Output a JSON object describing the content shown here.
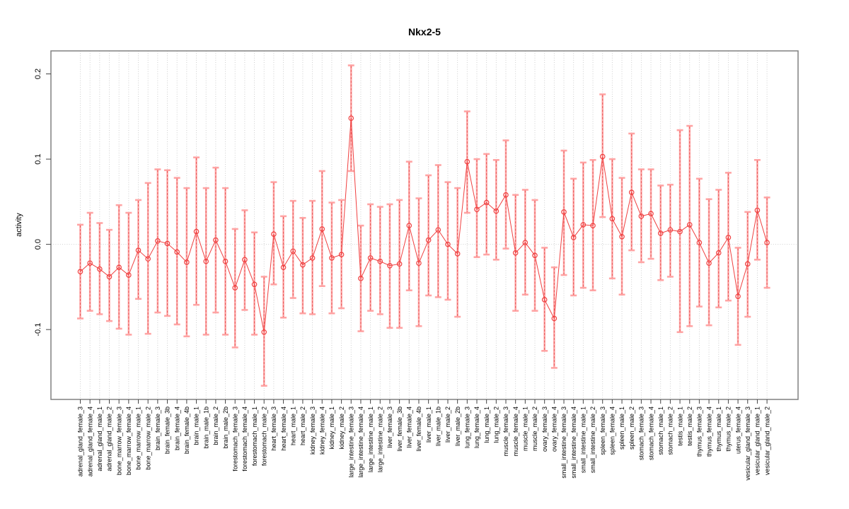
{
  "chart_data": {
    "type": "line",
    "title": "Nkx2-5",
    "xlabel": "",
    "ylabel": "activity",
    "ylim": [
      -0.182,
      0.227
    ],
    "yticks": [
      -0.1,
      0.0,
      0.1,
      0.2
    ],
    "grid": "dotted vertical gridline per category; dotted horizontal line at y=0",
    "legend": "none",
    "marker": "open-circle",
    "error_bars": true,
    "colors": {
      "point_line": "#f04040",
      "errorbar_band": "#ffa0a0",
      "errorbar_dash": "#e45252",
      "gridline": "#c9c9c9",
      "zero_line": "#cfcfcf",
      "box_border": "#808080",
      "text": "#000000",
      "background": "#ffffff"
    },
    "categories": [
      "adrenal_gland_female_3",
      "adrenal_gland_female_4",
      "adrenal_gland_male_1",
      "adrenal_gland_male_2",
      "bone_marrow_female_3",
      "bone_marrow_female_4",
      "bone_marrow_male_1",
      "bone_marrow_male_2",
      "brain_female_3",
      "brain_female_3b",
      "brain_female_4",
      "brain_female_4b",
      "brain_male_1",
      "brain_male_1b",
      "brain_male_2",
      "brain_male_2b",
      "forestomach_female_3",
      "forestomach_female_4",
      "forestomach_male_1",
      "forestomach_male_2",
      "heart_female_3",
      "heart_female_4",
      "heart_male_1",
      "heart_male_2",
      "kidney_female_3",
      "kidney_female_4",
      "kidney_male_1",
      "kidney_male_2",
      "large_intestine_female_3",
      "large_intestine_female_4",
      "large_intestine_male_1",
      "large_intestine_male_2",
      "liver_female_3",
      "liver_female_3b",
      "liver_female_4",
      "liver_female_4b",
      "liver_male_1",
      "liver_male_1b",
      "liver_male_2",
      "liver_male_2b",
      "lung_female_3",
      "lung_female_4",
      "lung_male_1",
      "lung_male_2",
      "muscle_female_3",
      "muscle_female_4",
      "muscle_male_1",
      "muscle_male_2",
      "ovary_female_3",
      "ovary_female_4",
      "small_intestine_female_3",
      "small_intestine_female_4",
      "small_intestine_male_1",
      "small_intestine_male_2",
      "spleen_female_3",
      "spleen_female_4",
      "spleen_male_1",
      "spleen_male_2",
      "stomach_female_3",
      "stomach_female_4",
      "stomach_male_1",
      "stomach_male_2",
      "testis_male_1",
      "testis_male_2",
      "thymus_female_3",
      "thymus_female_4",
      "thymus_male_1",
      "thymus_male_2",
      "uterus_female_4",
      "vesicular_gland_female_3",
      "vesicular_gland_male_1",
      "vesicular_gland_male_2"
    ],
    "series": [
      {
        "name": "activity",
        "values": [
          -0.032,
          -0.022,
          -0.029,
          -0.038,
          -0.027,
          -0.036,
          -0.007,
          -0.017,
          0.004,
          0.001,
          -0.009,
          -0.021,
          0.015,
          -0.02,
          0.005,
          -0.02,
          -0.051,
          -0.018,
          -0.047,
          -0.103,
          0.012,
          -0.027,
          -0.008,
          -0.024,
          -0.016,
          0.018,
          -0.016,
          -0.012,
          0.148,
          -0.04,
          -0.016,
          -0.02,
          -0.025,
          -0.023,
          0.022,
          -0.022,
          0.005,
          0.017,
          0.0,
          -0.011,
          0.097,
          0.041,
          0.049,
          0.039,
          0.058,
          -0.01,
          0.002,
          -0.013,
          -0.065,
          -0.087,
          0.038,
          0.008,
          0.023,
          0.022,
          0.103,
          0.03,
          0.009,
          0.061,
          0.033,
          0.036,
          0.013,
          0.017,
          0.015,
          0.023,
          0.002,
          -0.022,
          -0.01,
          0.008,
          -0.061,
          -0.023,
          0.04,
          0.002
        ],
        "lower": [
          -0.087,
          -0.078,
          -0.082,
          -0.09,
          -0.099,
          -0.106,
          -0.064,
          -0.105,
          -0.08,
          -0.084,
          -0.094,
          -0.108,
          -0.071,
          -0.106,
          -0.08,
          -0.106,
          -0.121,
          -0.077,
          -0.106,
          -0.166,
          -0.047,
          -0.086,
          -0.063,
          -0.081,
          -0.082,
          -0.049,
          -0.081,
          -0.075,
          0.086,
          -0.102,
          -0.078,
          -0.082,
          -0.098,
          -0.098,
          -0.054,
          -0.096,
          -0.06,
          -0.062,
          -0.065,
          -0.085,
          0.037,
          -0.015,
          -0.012,
          -0.018,
          -0.005,
          -0.078,
          -0.059,
          -0.078,
          -0.125,
          -0.145,
          -0.036,
          -0.06,
          -0.051,
          -0.054,
          0.032,
          -0.04,
          -0.059,
          -0.007,
          -0.021,
          -0.017,
          -0.042,
          -0.038,
          -0.103,
          -0.096,
          -0.073,
          -0.095,
          -0.074,
          -0.066,
          -0.118,
          -0.085,
          -0.018,
          -0.051
        ],
        "upper": [
          0.023,
          0.037,
          0.025,
          0.017,
          0.046,
          0.037,
          0.052,
          0.072,
          0.088,
          0.087,
          0.078,
          0.066,
          0.102,
          0.066,
          0.09,
          0.066,
          0.018,
          0.04,
          0.014,
          -0.038,
          0.073,
          0.033,
          0.051,
          0.031,
          0.051,
          0.086,
          0.049,
          0.052,
          0.21,
          0.022,
          0.047,
          0.044,
          0.047,
          0.052,
          0.097,
          0.054,
          0.081,
          0.093,
          0.073,
          0.066,
          0.156,
          0.1,
          0.106,
          0.099,
          0.122,
          0.058,
          0.064,
          0.052,
          -0.004,
          -0.027,
          0.11,
          0.077,
          0.096,
          0.099,
          0.176,
          0.1,
          0.078,
          0.13,
          0.088,
          0.088,
          0.069,
          0.07,
          0.134,
          0.139,
          0.077,
          0.053,
          0.064,
          0.084,
          -0.004,
          0.038,
          0.099,
          0.055
        ]
      }
    ]
  }
}
